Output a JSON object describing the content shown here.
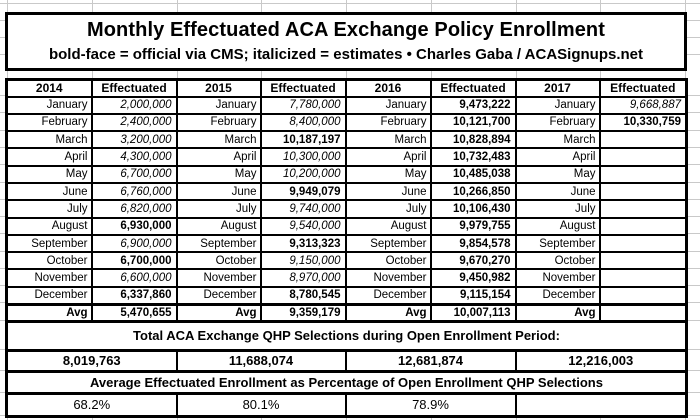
{
  "sheet": {
    "grid_color": "#c9c9c9",
    "border_color": "#000000",
    "background_color": "#ffffff"
  },
  "header": {
    "title": "Monthly Effectuated ACA Exchange Policy Enrollment",
    "subtitle": "bold-face = official via CMS; italicized = estimates  •  Charles Gaba / ACASignups.net"
  },
  "enrollment_table": {
    "column_headers": [
      "2014",
      "Effectuated",
      "2015",
      "Effectuated",
      "2016",
      "Effectuated",
      "2017",
      "Effectuated"
    ],
    "month_labels": [
      "January",
      "February",
      "March",
      "April",
      "May",
      "June",
      "July",
      "August",
      "September",
      "October",
      "November",
      "December",
      "Avg"
    ],
    "style_legend": {
      "estimate": "italic",
      "official": "bold"
    },
    "years": [
      {
        "year": "2014",
        "values": [
          "2,000,000",
          "2,400,000",
          "3,200,000",
          "4,300,000",
          "6,700,000",
          "6,760,000",
          "6,820,000",
          "6,930,000",
          "6,900,000",
          "6,700,000",
          "6,600,000",
          "6,337,860",
          "5,470,655"
        ],
        "styles": [
          "estimate",
          "estimate",
          "estimate",
          "estimate",
          "estimate",
          "estimate",
          "estimate",
          "official",
          "estimate",
          "official",
          "estimate",
          "official",
          "official"
        ]
      },
      {
        "year": "2015",
        "values": [
          "7,780,000",
          "8,400,000",
          "10,187,197",
          "10,300,000",
          "10,200,000",
          "9,949,079",
          "9,740,000",
          "9,540,000",
          "9,313,323",
          "9,150,000",
          "8,970,000",
          "8,780,545",
          "9,359,179"
        ],
        "styles": [
          "estimate",
          "estimate",
          "official",
          "estimate",
          "estimate",
          "official",
          "estimate",
          "estimate",
          "official",
          "estimate",
          "estimate",
          "official",
          "official"
        ]
      },
      {
        "year": "2016",
        "values": [
          "9,473,222",
          "10,121,700",
          "10,828,894",
          "10,732,483",
          "10,485,038",
          "10,266,850",
          "10,106,430",
          "9,979,755",
          "9,854,578",
          "9,670,270",
          "9,450,982",
          "9,115,154",
          "10,007,113"
        ],
        "styles": [
          "official",
          "official",
          "official",
          "official",
          "official",
          "official",
          "official",
          "official",
          "official",
          "official",
          "official",
          "official",
          "official"
        ]
      },
      {
        "year": "2017",
        "values": [
          "9,668,887",
          "10,330,759",
          "",
          "",
          "",
          "",
          "",
          "",
          "",
          "",
          "",
          "",
          ""
        ],
        "styles": [
          "estimate",
          "official",
          "",
          "",
          "",
          "",
          "",
          "",
          "",
          "",
          "",
          "",
          ""
        ]
      }
    ]
  },
  "totals_section": {
    "heading": "Total ACA Exchange QHP Selections during Open Enrollment Period:",
    "values": [
      "8,019,763",
      "11,688,074",
      "12,681,874",
      "12,216,003"
    ]
  },
  "percentage_section": {
    "heading": "Average Effectuated Enrollment as Percentage of Open Enrollment QHP Selections",
    "values": [
      "68.2%",
      "80.1%",
      "78.9%",
      ""
    ]
  }
}
